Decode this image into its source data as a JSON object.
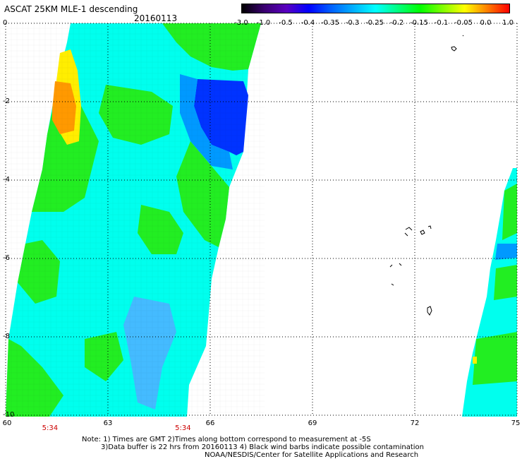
{
  "header": {
    "title": "ASCAT 25KM MLE-1 descending",
    "date": "20160113"
  },
  "colorbar": {
    "ticks": [
      "-3.0",
      "-1.0",
      "-0.5",
      "-0.4",
      "-0.35",
      "-0.3",
      "-0.25",
      "-0.2",
      "-0.15",
      "-0.1",
      "-0.05",
      "0.0",
      "1.0"
    ],
    "gradient_colors": [
      "#000000",
      "#3a0070",
      "#5a00c0",
      "#0000ff",
      "#0060ff",
      "#00b0ff",
      "#00ffff",
      "#00ff80",
      "#00ff00",
      "#80ff00",
      "#ffff00",
      "#ff8000",
      "#ff0000"
    ]
  },
  "axes": {
    "lat_labels": [
      "0",
      "-2",
      "-4",
      "-6",
      "-8",
      "-10"
    ],
    "lon_labels": [
      "60",
      "63",
      "66",
      "69",
      "72",
      "75"
    ],
    "lat_values": [
      0,
      -2,
      -4,
      -6,
      -8,
      -10
    ],
    "lon_values": [
      60,
      63,
      66,
      69,
      72,
      75
    ],
    "lat_range": [
      0,
      -10
    ],
    "lon_range": [
      60,
      75
    ]
  },
  "time_labels": [
    {
      "text": "5:34",
      "lon": 61.3
    },
    {
      "text": "5:34",
      "lon": 65.2
    }
  ],
  "notes": {
    "line1": "Note: 1) Times are GMT 2)Times along bottom correspond to measurement at -5S",
    "line2": "3)Data buffer is 22 hrs from 20160113 4) Black wind barbs indicate possible contamination",
    "line3": "NOAA/NESDIS/Center for Satellite Applications and Research"
  },
  "colors": {
    "green": "#22ee22",
    "cyan": "#00ffee",
    "blue": "#0033ff",
    "yellow": "#ffee00",
    "orange": "#ff9900"
  }
}
